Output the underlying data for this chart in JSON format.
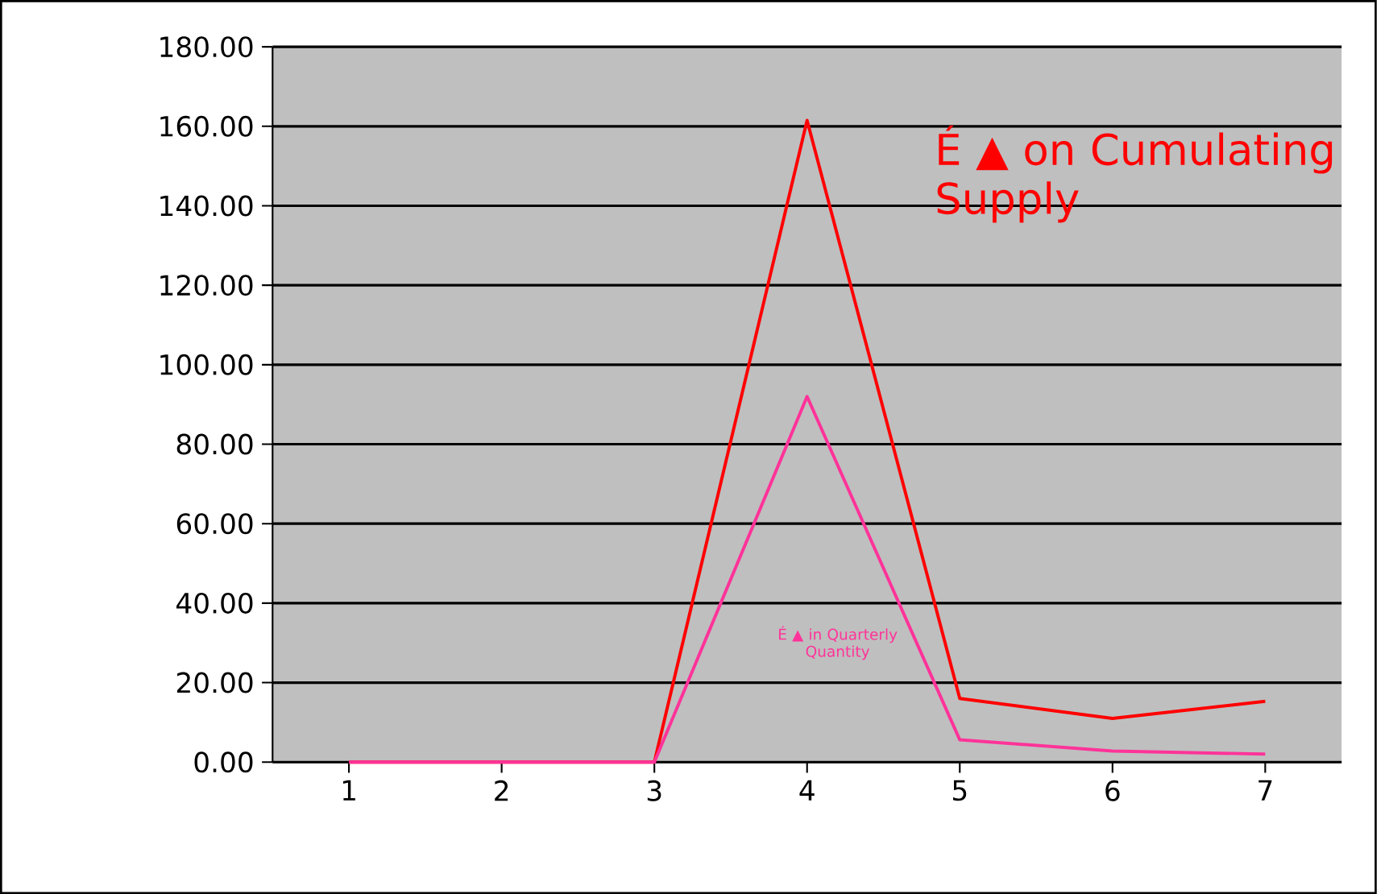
{
  "chart_data": {
    "type": "line",
    "categories": [
      "1",
      "2",
      "3",
      "4",
      "5",
      "6",
      "7"
    ],
    "series": [
      {
        "name": "É ▲ on Cumulating Supply",
        "color": "#ff0000",
        "values": [
          0,
          0,
          0,
          161.5,
          16,
          11,
          15.3
        ]
      },
      {
        "name": "É ▲ in Quarterly Quantity",
        "color": "#ff3399",
        "values": [
          0,
          0,
          0,
          92,
          5.6,
          2.8,
          2
        ]
      }
    ],
    "ylim": [
      0,
      180
    ],
    "yticks": [
      {
        "value": 0,
        "label": "0.00"
      },
      {
        "value": 20,
        "label": "20.00"
      },
      {
        "value": 40,
        "label": "40.00"
      },
      {
        "value": 60,
        "label": "60.00"
      },
      {
        "value": 80,
        "label": "80.00"
      },
      {
        "value": 100,
        "label": "100.00"
      },
      {
        "value": 120,
        "label": "120.00"
      },
      {
        "value": 140,
        "label": "140.00"
      },
      {
        "value": 160,
        "label": "160.00"
      },
      {
        "value": 180,
        "label": "180.00"
      }
    ],
    "grid": "y",
    "marker": "none",
    "line_style": "solid"
  }
}
